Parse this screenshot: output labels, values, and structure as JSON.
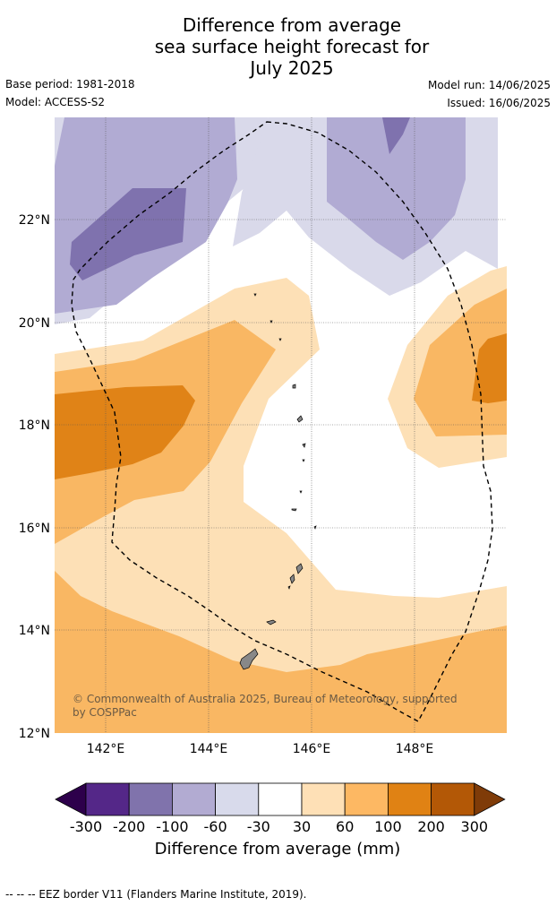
{
  "title": {
    "line1": "Difference from average",
    "line2": "sea surface height forecast for",
    "line3": "July 2025"
  },
  "meta": {
    "base_period": "Base period: 1981-2018",
    "model": "Model: ACCESS-S2",
    "model_run": "Model run: 14/06/2025",
    "issued": "Issued: 16/06/2025"
  },
  "map": {
    "lat_labels": [
      "22°N",
      "20°N",
      "18°N",
      "16°N",
      "14°N",
      "12°N"
    ],
    "lon_labels": [
      "142°E",
      "144°E",
      "146°E",
      "148°E"
    ],
    "copyright_line1": "© Commonwealth of Australia 2025, Bureau of Meteorology, supported",
    "copyright_line2": "by COSPPac",
    "colors": {
      "lav_light": "#d9d9ea",
      "lav_mid": "#b1abd3",
      "lav_dark": "#7f72ae",
      "orange_pale": "#fde0b6",
      "orange_light": "#f9b763",
      "orange_mid": "#e08317",
      "land": "#888888"
    }
  },
  "colorbar": {
    "labels": [
      "-300",
      "-200",
      "-100",
      "-60",
      "-30",
      "30",
      "60",
      "100",
      "200",
      "300"
    ],
    "colors": [
      "#2d004b",
      "#542788",
      "#8073ac",
      "#b2abd2",
      "#d8daeb",
      "#ffffff",
      "#fee0b6",
      "#fdb863",
      "#e08214",
      "#b35806",
      "#7f3b08"
    ],
    "title": "Difference from average (mm)"
  },
  "footnote": "--  --  -- EEZ border V11 (Flanders Marine Institute, 2019)."
}
